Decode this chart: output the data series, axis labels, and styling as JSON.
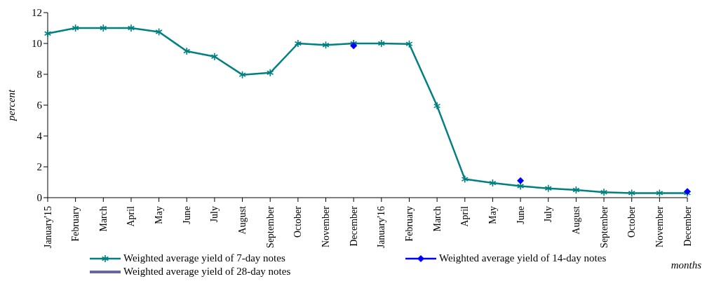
{
  "chart_data": {
    "type": "line",
    "xlabel": "months",
    "ylabel": "percent",
    "categories": [
      "January'15",
      "February",
      "March",
      "April",
      "May",
      "June",
      "July",
      "August",
      "September",
      "October",
      "November",
      "December",
      "January'16",
      "February",
      "March",
      "April",
      "May",
      "June",
      "July",
      "August",
      "September",
      "October",
      "November",
      "December"
    ],
    "series": [
      {
        "name": "Weighted average yield of 7-day notes",
        "color": "#008080",
        "marker": "cross",
        "values": [
          10.65,
          11.0,
          11.0,
          11.0,
          10.75,
          9.5,
          9.15,
          7.97,
          8.1,
          10.0,
          9.9,
          10.0,
          10.0,
          9.97,
          5.95,
          1.2,
          0.95,
          0.75,
          0.6,
          0.5,
          0.35,
          0.3,
          0.3,
          0.3
        ]
      },
      {
        "name": "Weighted average yield of 14-day notes",
        "type": "scatter",
        "color": "#0000ff",
        "marker": "diamond",
        "values": [
          null,
          null,
          null,
          null,
          null,
          null,
          null,
          null,
          null,
          null,
          null,
          9.85,
          null,
          null,
          null,
          null,
          null,
          1.1,
          null,
          null,
          null,
          null,
          null,
          0.4
        ]
      },
      {
        "name": "Weighted average yield of 28-day notes",
        "color": "#6666a0",
        "marker": "none",
        "values": [
          null,
          null,
          null,
          null,
          null,
          null,
          null,
          null,
          null,
          null,
          null,
          null,
          null,
          null,
          null,
          null,
          null,
          null,
          null,
          null,
          null,
          null,
          null,
          null
        ]
      }
    ],
    "ylim": [
      0,
      12
    ],
    "yticks": [
      0,
      2,
      4,
      6,
      8,
      10,
      12
    ],
    "grid": false,
    "legend": "bottom"
  }
}
